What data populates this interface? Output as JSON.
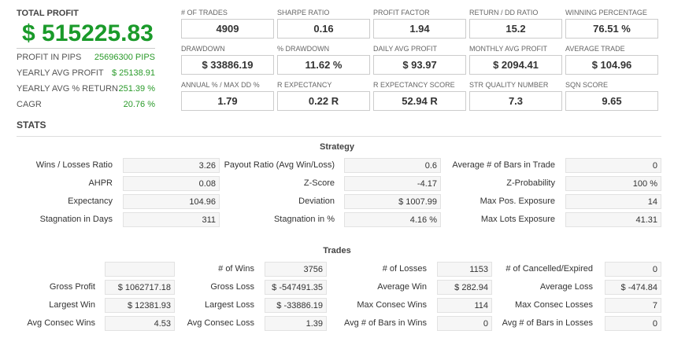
{
  "summary": {
    "total_profit_label": "TOTAL PROFIT",
    "total_profit": "$ 515225.83",
    "rows": [
      {
        "label": "PROFIT IN PIPS",
        "value": "25696300 PIPS"
      },
      {
        "label": "YEARLY AVG PROFIT",
        "value": "$ 25138.91"
      },
      {
        "label": "YEARLY AVG % RETURN",
        "value": "251.39 %"
      },
      {
        "label": "CAGR",
        "value": "20.76 %"
      }
    ]
  },
  "cards": [
    {
      "label": "# OF TRADES",
      "value": "4909"
    },
    {
      "label": "SHARPE RATIO",
      "value": "0.16"
    },
    {
      "label": "PROFIT FACTOR",
      "value": "1.94"
    },
    {
      "label": "RETURN / DD RATIO",
      "value": "15.2"
    },
    {
      "label": "WINNING PERCENTAGE",
      "value": "76.51 %"
    },
    {
      "label": "DRAWDOWN",
      "value": "$ 33886.19"
    },
    {
      "label": "% DRAWDOWN",
      "value": "11.62 %"
    },
    {
      "label": "DAILY AVG PROFIT",
      "value": "$ 93.97"
    },
    {
      "label": "MONTHLY AVG PROFIT",
      "value": "$ 2094.41"
    },
    {
      "label": "AVERAGE TRADE",
      "value": "$ 104.96"
    },
    {
      "label": "ANNUAL % / MAX DD %",
      "value": "1.79"
    },
    {
      "label": "R EXPECTANCY",
      "value": "0.22 R"
    },
    {
      "label": "R EXPECTANCY SCORE",
      "value": "52.94 R"
    },
    {
      "label": "STR QUALITY NUMBER",
      "value": "7.3"
    },
    {
      "label": "SQN SCORE",
      "value": "9.65"
    }
  ],
  "stats_title": "STATS",
  "strategy": {
    "title": "Strategy",
    "rows": [
      [
        [
          "Wins / Losses Ratio",
          "3.26"
        ],
        [
          "Payout Ratio (Avg Win/Loss)",
          "0.6"
        ],
        [
          "Average # of Bars in Trade",
          "0"
        ]
      ],
      [
        [
          "AHPR",
          "0.08"
        ],
        [
          "Z-Score",
          "-4.17"
        ],
        [
          "Z-Probability",
          "100 %"
        ]
      ],
      [
        [
          "Expectancy",
          "104.96"
        ],
        [
          "Deviation",
          "$ 1007.99"
        ],
        [
          "Max Pos. Exposure",
          "14"
        ]
      ],
      [
        [
          "Stagnation in Days",
          "311"
        ],
        [
          "Stagnation in %",
          "4.16 %"
        ],
        [
          "Max Lots Exposure",
          "41.31"
        ]
      ]
    ]
  },
  "trades": {
    "title": "Trades",
    "rows": [
      [
        [
          "",
          ""
        ],
        [
          "# of Wins",
          "3756"
        ],
        [
          "# of Losses",
          "1153"
        ],
        [
          "# of Cancelled/Expired",
          "0"
        ]
      ],
      [
        [
          "Gross Profit",
          "$ 1062717.18"
        ],
        [
          "Gross Loss",
          "$ -547491.35"
        ],
        [
          "Average Win",
          "$ 282.94"
        ],
        [
          "Average Loss",
          "$ -474.84"
        ]
      ],
      [
        [
          "Largest Win",
          "$ 12381.93"
        ],
        [
          "Largest Loss",
          "$ -33886.19"
        ],
        [
          "Max Consec Wins",
          "114"
        ],
        [
          "Max Consec Losses",
          "7"
        ]
      ],
      [
        [
          "Avg Consec Wins",
          "4.53"
        ],
        [
          "Avg Consec Loss",
          "1.39"
        ],
        [
          "Avg # of Bars in Wins",
          "0"
        ],
        [
          "Avg # of Bars in Losses",
          "0"
        ]
      ]
    ]
  }
}
